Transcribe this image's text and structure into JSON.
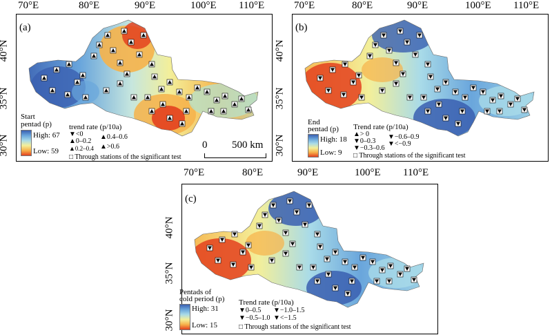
{
  "panels": [
    {
      "id": "a",
      "label": "(a)",
      "lon_ticks": [
        "70°E",
        "80°E",
        "90°E",
        "100°E",
        "110°E"
      ],
      "lat_ticks": [
        "40°N",
        "35°N",
        "30°N"
      ],
      "colorbar_title_lines": [
        "Start",
        "pentad (p)"
      ],
      "colorbar_high": "High: 67",
      "colorbar_low": "Low: 59",
      "colors": [
        "#3a5fb0",
        "#6aa6dc",
        "#a9dbe8",
        "#f3ef9a",
        "#f6b24a",
        "#e3411f"
      ],
      "trend_title": "trend rate (p/10a)",
      "trend_items": [
        "<0",
        "0–0.2",
        "0.2–0.4",
        "0.4–0.6",
        ">0.6"
      ],
      "significant_note": "Through stations of the significant test",
      "scalebar": {
        "start": "0",
        "end": "500 km"
      }
    },
    {
      "id": "b",
      "label": "(b)",
      "lon_ticks": [
        "70°E",
        "80°E",
        "90°E",
        "100°E",
        "110°E"
      ],
      "lat_ticks": [
        "40°N",
        "35°N",
        "30°N"
      ],
      "colorbar_title_lines": [
        "End",
        "pentad (p)"
      ],
      "colorbar_high": "High: 18",
      "colorbar_low": "Low: 9",
      "colors": [
        "#3a5fb0",
        "#6aa6dc",
        "#a9dbe8",
        "#f3ef9a",
        "#f6b24a",
        "#e3411f"
      ],
      "trend_title": "Trend rate (p/10a)",
      "trend_items": [
        "> 0",
        "0–0.3",
        "−0.3–0.6",
        "−0.6–0.9",
        "<−0.9"
      ],
      "significant_note": "Through stations of the significant test"
    },
    {
      "id": "c",
      "label": "(c)",
      "lon_ticks": [
        "70°E",
        "80°E",
        "90°E",
        "100°E",
        "110°E"
      ],
      "lat_ticks": [
        "40°N",
        "35°N",
        "30°N"
      ],
      "colorbar_title_lines": [
        "Pentads of",
        "cold period (p)"
      ],
      "colorbar_high": "High: 31",
      "colorbar_low": "Low: 15",
      "colors": [
        "#3a5fb0",
        "#6aa6dc",
        "#a9dbe8",
        "#f3ef9a",
        "#f6b24a",
        "#e3411f"
      ],
      "trend_title": "Trend rate (p/10a)",
      "trend_items": [
        "0–0.5",
        "−1.0–1.5",
        "−0.5–1.0",
        "<−1.5"
      ],
      "significant_note": "Through stations of the significant test"
    }
  ]
}
